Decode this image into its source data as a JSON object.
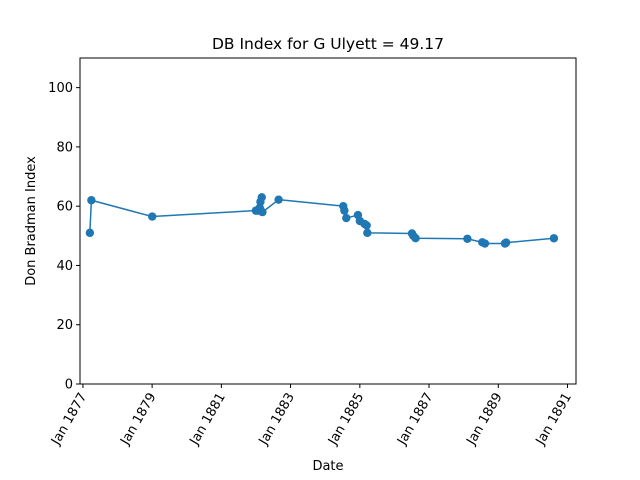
{
  "chart_data": {
    "type": "line",
    "title": "DB Index for G Ulyett = 49.17",
    "xlabel": "Date",
    "ylabel": "Don Bradman Index",
    "ylim": [
      0,
      110
    ],
    "xlim": [
      "1876-12-01",
      "1891-04-01"
    ],
    "grid": false,
    "marker": "circle",
    "color": "#1f77b4",
    "yticks": [
      0,
      20,
      40,
      60,
      80,
      100
    ],
    "xticks": [
      {
        "date": "1877-01-01",
        "label": "Jan 1877"
      },
      {
        "date": "1879-01-01",
        "label": "Jan 1879"
      },
      {
        "date": "1881-01-01",
        "label": "Jan 1881"
      },
      {
        "date": "1883-01-01",
        "label": "Jan 1883"
      },
      {
        "date": "1885-01-01",
        "label": "Jan 1885"
      },
      {
        "date": "1887-01-01",
        "label": "Jan 1887"
      },
      {
        "date": "1889-01-01",
        "label": "Jan 1889"
      },
      {
        "date": "1891-01-01",
        "label": "Jan 1891"
      }
    ],
    "series": [
      {
        "points": [
          {
            "x": "1877-03-15",
            "y": 51.0
          },
          {
            "x": "1877-03-31",
            "y": 62.0
          },
          {
            "x": "1879-01-02",
            "y": 56.5
          },
          {
            "x": "1881-12-31",
            "y": 58.5
          },
          {
            "x": "1882-01-20",
            "y": 58.5
          },
          {
            "x": "1882-02-10",
            "y": 59.5
          },
          {
            "x": "1882-02-17",
            "y": 61.5
          },
          {
            "x": "1882-03-03",
            "y": 63.0
          },
          {
            "x": "1882-03-10",
            "y": 58.0
          },
          {
            "x": "1882-08-28",
            "y": 62.2
          },
          {
            "x": "1884-07-10",
            "y": 60.0
          },
          {
            "x": "1884-07-22",
            "y": 58.5
          },
          {
            "x": "1884-08-11",
            "y": 56.0
          },
          {
            "x": "1884-12-12",
            "y": 57.0
          },
          {
            "x": "1885-01-01",
            "y": 55.0
          },
          {
            "x": "1885-02-20",
            "y": 54.0
          },
          {
            "x": "1885-03-14",
            "y": 53.5
          },
          {
            "x": "1885-03-21",
            "y": 51.0
          },
          {
            "x": "1886-07-05",
            "y": 50.8
          },
          {
            "x": "1886-07-19",
            "y": 50.0
          },
          {
            "x": "1886-08-12",
            "y": 49.2
          },
          {
            "x": "1888-02-10",
            "y": 49.0
          },
          {
            "x": "1888-07-16",
            "y": 47.8
          },
          {
            "x": "1888-08-13",
            "y": 47.4
          },
          {
            "x": "1889-03-12",
            "y": 47.4
          },
          {
            "x": "1889-03-25",
            "y": 47.7
          },
          {
            "x": "1890-08-11",
            "y": 49.17
          }
        ]
      }
    ]
  }
}
